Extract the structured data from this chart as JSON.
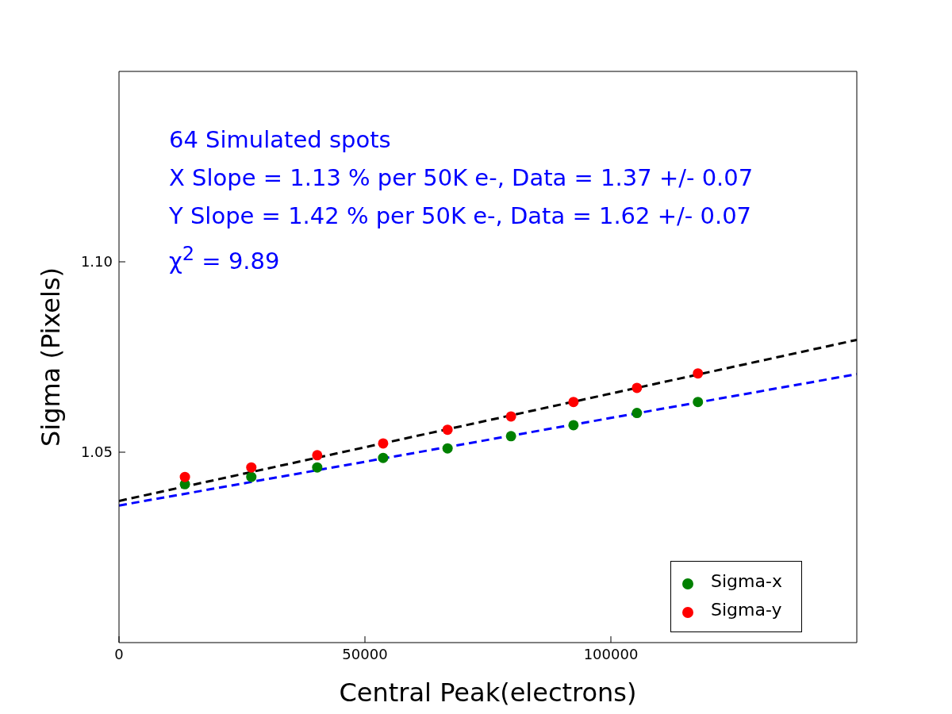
{
  "chart_data": {
    "type": "scatter",
    "xlabel": "Central Peak(electrons)",
    "ylabel": "Sigma (Pixels)",
    "xlim": [
      0,
      150000
    ],
    "ylim": [
      1.0,
      1.15
    ],
    "xticks": [
      0,
      50000,
      100000
    ],
    "yticks": [
      {
        "value": 1.05,
        "label": "1.05"
      },
      {
        "value": 1.1,
        "label": "1.10"
      }
    ],
    "legend": "bottom right",
    "marker": "circle",
    "annotations": [
      "64 Simulated spots",
      "X Slope = 1.13 % per 50K e-, Data = 1.37 +/- 0.07",
      "Y Slope = 1.42 % per 50K e-, Data = 1.62 +/- 0.07",
      "χ$^{2}$  = 9.89"
    ],
    "series": [
      {
        "type": "line",
        "color": "#0000ff",
        "line_style": "dashed",
        "marker": "none",
        "x": [
          0,
          150000
        ],
        "values": [
          1.036,
          1.0705
        ]
      },
      {
        "type": "line",
        "color": "#000000",
        "line_style": "dashed",
        "marker": "none",
        "x": [
          0,
          150000
        ],
        "values": [
          1.0372,
          1.0795
        ]
      },
      {
        "name": "Sigma-x",
        "color": "#008000",
        "x": [
          13400,
          26900,
          40300,
          53700,
          66800,
          79700,
          92400,
          105300,
          117700
        ],
        "values": [
          1.0416,
          1.0435,
          1.046,
          1.0485,
          1.051,
          1.0542,
          1.0571,
          1.0603,
          1.0632
        ]
      },
      {
        "name": "Sigma-y",
        "color": "#ff0000",
        "x": [
          13400,
          26900,
          40300,
          53700,
          66800,
          79700,
          92400,
          105300,
          117700
        ],
        "values": [
          1.0435,
          1.046,
          1.0492,
          1.0523,
          1.0559,
          1.0594,
          1.0632,
          1.0669,
          1.0707
        ]
      }
    ]
  }
}
